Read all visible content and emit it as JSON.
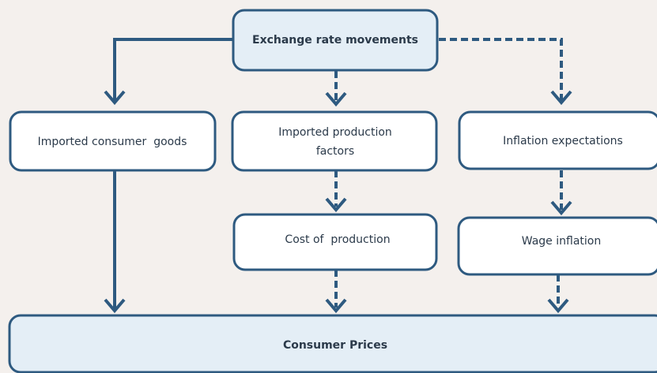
{
  "nodes": [
    {
      "label": "Exchange rate movements"
    },
    {
      "label": "Imported consumer  goods"
    },
    {
      "label_lines": [
        "Imported production",
        "factors"
      ]
    },
    {
      "label": "Inflation expectations"
    },
    {
      "label": "Cost of  production"
    },
    {
      "label": "Wage inflation"
    },
    {
      "label": "Consumer Prices"
    }
  ]
}
